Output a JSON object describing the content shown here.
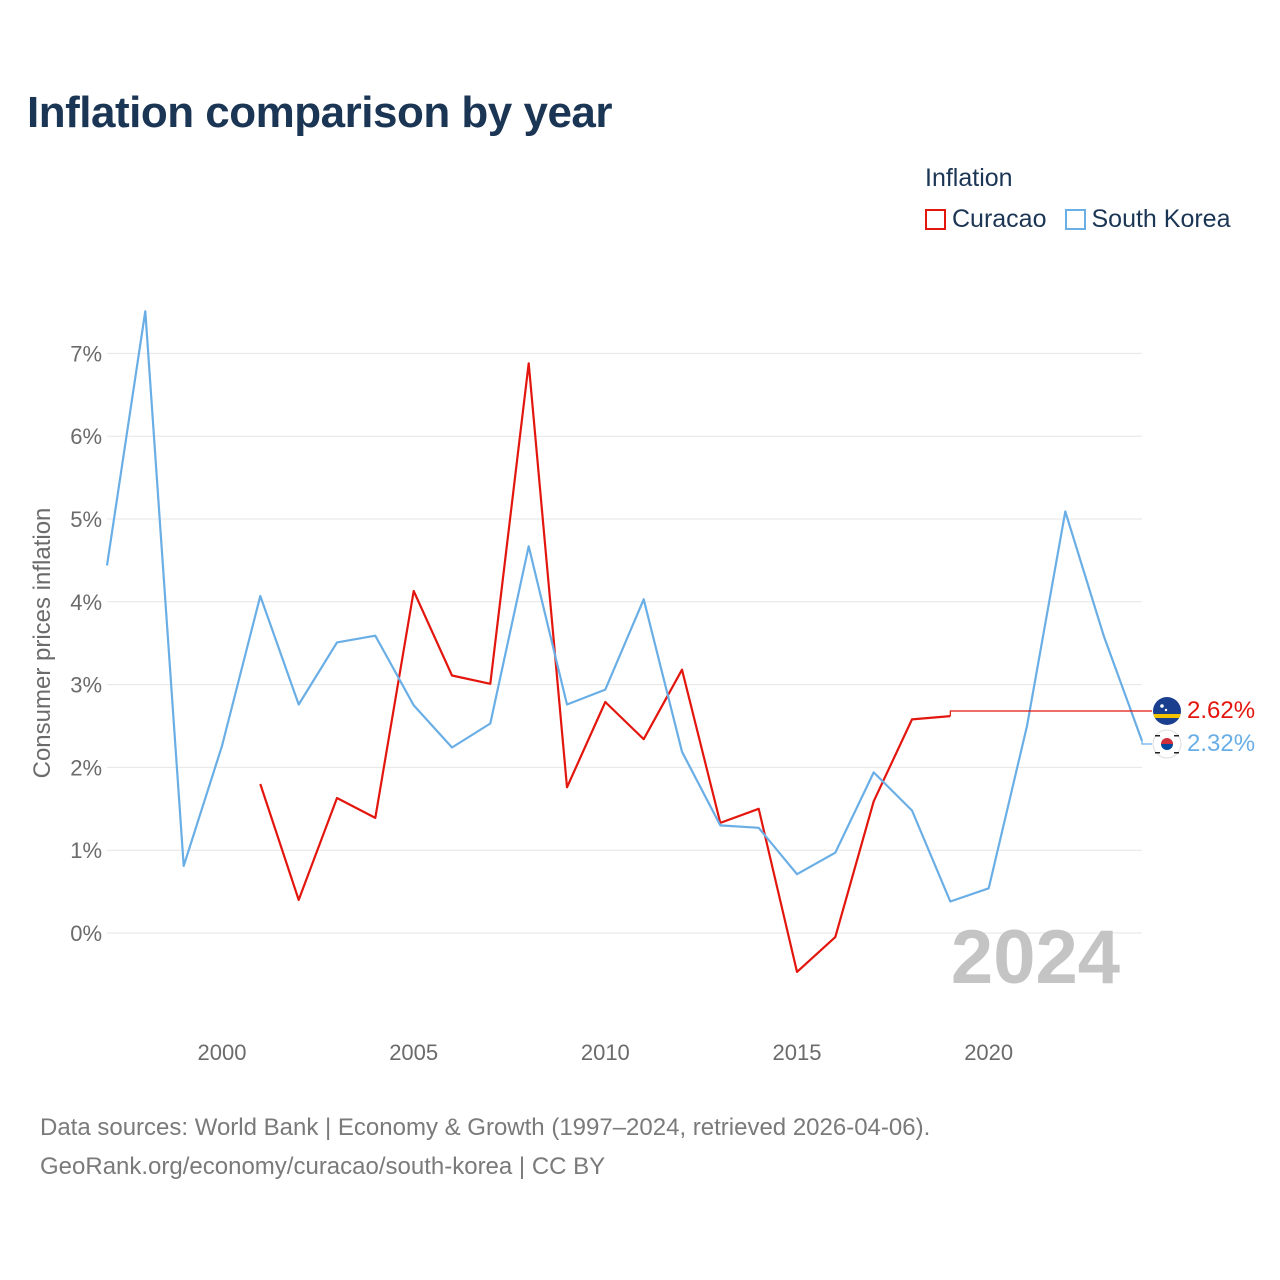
{
  "title": "Inflation comparison by year",
  "legend": {
    "title": "Inflation",
    "items": [
      "Curacao",
      "South Korea"
    ]
  },
  "footer": {
    "line1": "Data sources: World Bank | Economy & Growth (1997–2024, retrieved 2026-04-06).",
    "line2": "GeoRank.org/economy/curacao/south-korea | CC BY"
  },
  "colors": {
    "curacao": "#e3160e",
    "south_korea": "#6aaee6",
    "grid": "#e6e6e6"
  },
  "current_year": "2024",
  "end_labels": {
    "curacao": "2.62%",
    "south_korea": "2.32%"
  },
  "chart_data": {
    "type": "line",
    "title": "Inflation comparison by year",
    "xlabel": "",
    "ylabel": "Consumer prices inflation",
    "xlim": [
      1997,
      2024
    ],
    "ylim": [
      -1,
      7.5
    ],
    "x_ticks": [
      2000,
      2005,
      2010,
      2015,
      2020
    ],
    "y_ticks": [
      0,
      1,
      2,
      3,
      4,
      5,
      6,
      7
    ],
    "y_tick_labels": [
      "0%",
      "1%",
      "2%",
      "3%",
      "4%",
      "5%",
      "6%",
      "7%"
    ],
    "series": [
      {
        "name": "Curacao",
        "x": [
          2001,
          2002,
          2003,
          2004,
          2005,
          2006,
          2007,
          2008,
          2009,
          2010,
          2011,
          2012,
          2013,
          2014,
          2015,
          2016,
          2017,
          2018,
          2019
        ],
        "values": [
          1.8,
          0.4,
          1.63,
          1.39,
          4.13,
          3.11,
          3.01,
          6.88,
          1.76,
          2.79,
          2.34,
          3.18,
          1.33,
          1.5,
          -0.47,
          -0.05,
          1.59,
          2.58,
          2.62
        ]
      },
      {
        "name": "South Korea",
        "x": [
          1997,
          1998,
          1999,
          2000,
          2001,
          2002,
          2003,
          2004,
          2005,
          2006,
          2007,
          2008,
          2009,
          2010,
          2011,
          2012,
          2013,
          2014,
          2015,
          2016,
          2017,
          2018,
          2019,
          2020,
          2021,
          2022,
          2023,
          2024
        ],
        "values": [
          4.44,
          7.51,
          0.81,
          2.26,
          4.07,
          2.76,
          3.51,
          3.59,
          2.75,
          2.24,
          2.53,
          4.67,
          2.76,
          2.94,
          4.03,
          2.19,
          1.3,
          1.27,
          0.71,
          0.97,
          1.94,
          1.48,
          0.38,
          0.54,
          2.5,
          5.09,
          3.59,
          2.32
        ]
      }
    ]
  }
}
